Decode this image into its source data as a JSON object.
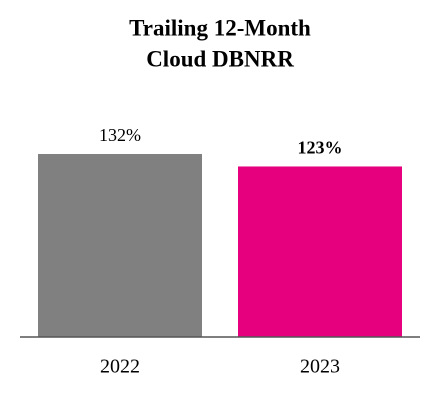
{
  "chart_data": {
    "type": "bar",
    "title": [
      "Trailing 12-Month",
      "Cloud DBNRR"
    ],
    "categories": [
      "2022",
      "2023"
    ],
    "values": [
      132,
      123
    ],
    "value_labels": [
      "132%",
      "123%"
    ],
    "label_weight": [
      "normal",
      "bold"
    ],
    "colors": [
      "#808080",
      "#e6007e"
    ]
  }
}
